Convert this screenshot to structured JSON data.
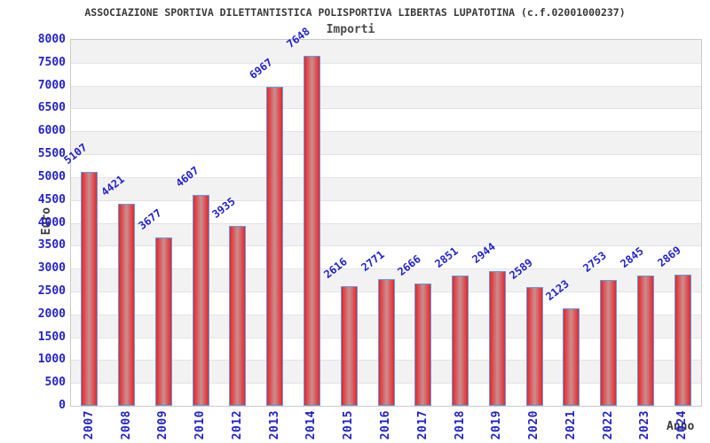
{
  "chart_data": {
    "type": "bar",
    "title": "ASSOCIAZIONE SPORTIVA DILETTANTISTICA POLISPORTIVA LIBERTAS LUPATOTINA (c.f.02001000237)",
    "subtitle": "Importi",
    "xlabel": "Anno",
    "ylabel": "Euro",
    "categories": [
      "2007",
      "2008",
      "2009",
      "2010",
      "2012",
      "2013",
      "2014",
      "2015",
      "2016",
      "2017",
      "2018",
      "2019",
      "2020",
      "2021",
      "2022",
      "2023",
      "2024"
    ],
    "values": [
      5107,
      4421,
      3677,
      4607,
      3935,
      6967,
      7648,
      2616,
      2771,
      2666,
      2851,
      2944,
      2589,
      2123,
      2753,
      2845,
      2869
    ],
    "ylim": [
      0,
      8000
    ],
    "ytick_step": 500,
    "legend": "none",
    "grid": "horizontal-bands",
    "style": {
      "band_gray": "#f2f2f2",
      "band_white": "#ffffff",
      "gridline": "#e3e3e3",
      "frame": "#c9c9c9",
      "bar_edge_red": "#e8252b",
      "bar_center": "#c98f8f",
      "bar_border_blue": "#5b9ee0",
      "axis_text_blue": "#2222cc",
      "heading_text": "#3a3a3a"
    }
  }
}
